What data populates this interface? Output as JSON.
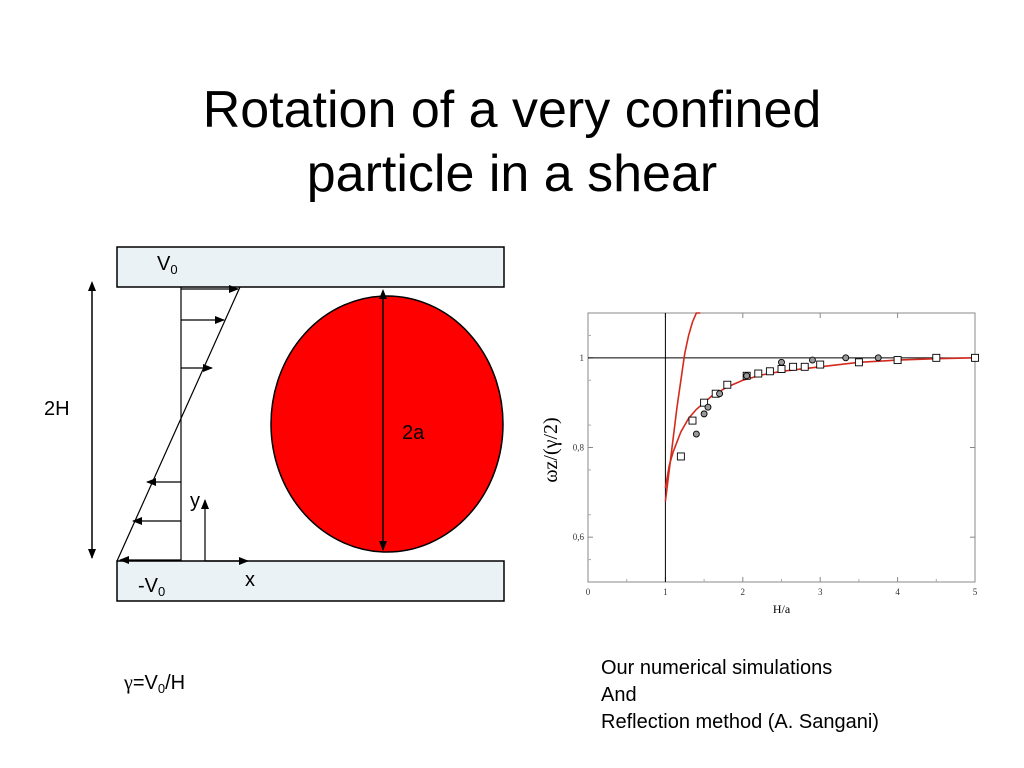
{
  "slide": {
    "title_line1": "Rotation of a very confined",
    "title_line2": "particle in a shear"
  },
  "diagram": {
    "top_velocity": "V",
    "top_velocity_sub": "0",
    "bottom_velocity": "-V",
    "bottom_velocity_sub": "0",
    "gap_label": "2H",
    "diameter_label": "2a",
    "axis_x": "x",
    "axis_y": "y",
    "shear_rate_symbol": "γ",
    "shear_rate_eq": "=V",
    "shear_rate_sub": "0",
    "shear_rate_den": "/H",
    "particle_color": "#ff0000",
    "wall_color": "#eaf2f6"
  },
  "chart_data": {
    "type": "scatter",
    "xlabel": "H/a",
    "ylabel": "ωz/(γ/2)",
    "xlim": [
      0,
      5
    ],
    "ylim": [
      0.5,
      1.1
    ],
    "x_ticks": [
      "0",
      "1",
      "2",
      "3",
      "4",
      "5"
    ],
    "y_ticks": [
      "0,6",
      "0,8",
      "1"
    ],
    "series": [
      {
        "marker": "square",
        "x": [
          1.2,
          1.35,
          1.5,
          1.65,
          1.8,
          2.05,
          2.2,
          2.35,
          2.5,
          2.65,
          2.8,
          3.0,
          3.5,
          4.0,
          4.5,
          5.0
        ],
        "y": [
          0.78,
          0.86,
          0.9,
          0.92,
          0.94,
          0.96,
          0.965,
          0.97,
          0.975,
          0.98,
          0.98,
          0.985,
          0.99,
          0.995,
          1.0,
          1.0
        ]
      },
      {
        "marker": "filled-circle",
        "x": [
          1.4,
          1.5,
          1.55,
          1.7,
          2.05,
          2.5,
          2.9,
          3.33,
          3.75
        ],
        "y": [
          0.83,
          0.875,
          0.89,
          0.92,
          0.96,
          0.99,
          0.995,
          1.0,
          1.0
        ]
      }
    ],
    "curves": [
      {
        "color": "#d42a1e",
        "x": [
          1.0,
          1.05,
          1.1,
          1.2,
          1.3,
          1.4,
          1.5,
          1.6,
          1.7,
          1.8,
          2.0,
          2.25,
          2.5,
          3.0,
          3.5,
          4.0,
          4.5,
          5.0
        ],
        "y": [
          0.71,
          0.76,
          0.79,
          0.835,
          0.865,
          0.885,
          0.9,
          0.915,
          0.925,
          0.935,
          0.95,
          0.962,
          0.97,
          0.98,
          0.99,
          0.995,
          0.998,
          1.0
        ]
      },
      {
        "color": "#d42a1e",
        "x": [
          1.0,
          1.05,
          1.1,
          1.15,
          1.2,
          1.25,
          1.3,
          1.35,
          1.4,
          1.45
        ],
        "y": [
          0.68,
          0.75,
          0.82,
          0.89,
          0.95,
          1.01,
          1.05,
          1.08,
          1.1,
          1.12
        ]
      }
    ],
    "ref_lines": {
      "x": 1,
      "y": 1
    }
  },
  "caption": {
    "line1": "Our numerical simulations",
    "line2": "And",
    "line3": "Reflection method (A. Sangani)"
  }
}
